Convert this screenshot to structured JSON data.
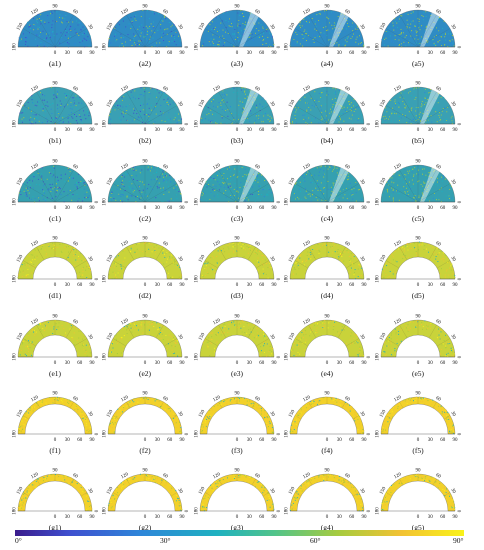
{
  "figure": {
    "rows": [
      {
        "id": "a",
        "panels": [
          {
            "label": "(a1)"
          },
          {
            "label": "(a2)"
          },
          {
            "label": "(a3)"
          },
          {
            "label": "(a4)"
          },
          {
            "label": "(a5)"
          }
        ]
      },
      {
        "id": "b",
        "panels": [
          {
            "label": "(b1)"
          },
          {
            "label": "(b2)"
          },
          {
            "label": "(b3)"
          },
          {
            "label": "(b4)"
          },
          {
            "label": "(b5)"
          }
        ]
      },
      {
        "id": "c",
        "panels": [
          {
            "label": "(c1)"
          },
          {
            "label": "(c2)"
          },
          {
            "label": "(c3)"
          },
          {
            "label": "(c4)"
          },
          {
            "label": "(c5)"
          }
        ]
      },
      {
        "id": "d",
        "panels": [
          {
            "label": "(d1)"
          },
          {
            "label": "(d2)"
          },
          {
            "label": "(d3)"
          },
          {
            "label": "(d4)"
          },
          {
            "label": "(d5)"
          }
        ]
      },
      {
        "id": "e",
        "panels": [
          {
            "label": "(e1)"
          },
          {
            "label": "(e2)"
          },
          {
            "label": "(e3)"
          },
          {
            "label": "(e4)"
          },
          {
            "label": "(e5)"
          }
        ]
      },
      {
        "id": "f",
        "panels": [
          {
            "label": "(f1)"
          },
          {
            "label": "(f2)"
          },
          {
            "label": "(f3)"
          },
          {
            "label": "(f4)"
          },
          {
            "label": "(f5)"
          }
        ]
      },
      {
        "id": "g",
        "panels": [
          {
            "label": "(g1)"
          },
          {
            "label": "(g2)"
          },
          {
            "label": "(g3)"
          },
          {
            "label": "(g4)"
          },
          {
            "label": "(g5)"
          }
        ]
      }
    ],
    "angle_ticks": [
      "180",
      "150",
      "120",
      "90",
      "60",
      "30",
      "0"
    ],
    "radial_ticks": [
      "0",
      "30",
      "60",
      "90"
    ],
    "colorbar": {
      "labels": [
        "0°",
        "30°",
        "60°",
        "90°"
      ],
      "colors": [
        "#3a1c8c",
        "#3f4fcf",
        "#2e86d9",
        "#1fb1c0",
        "#52c489",
        "#a6cb3f",
        "#f2c233",
        "#f9f21a"
      ]
    }
  }
}
